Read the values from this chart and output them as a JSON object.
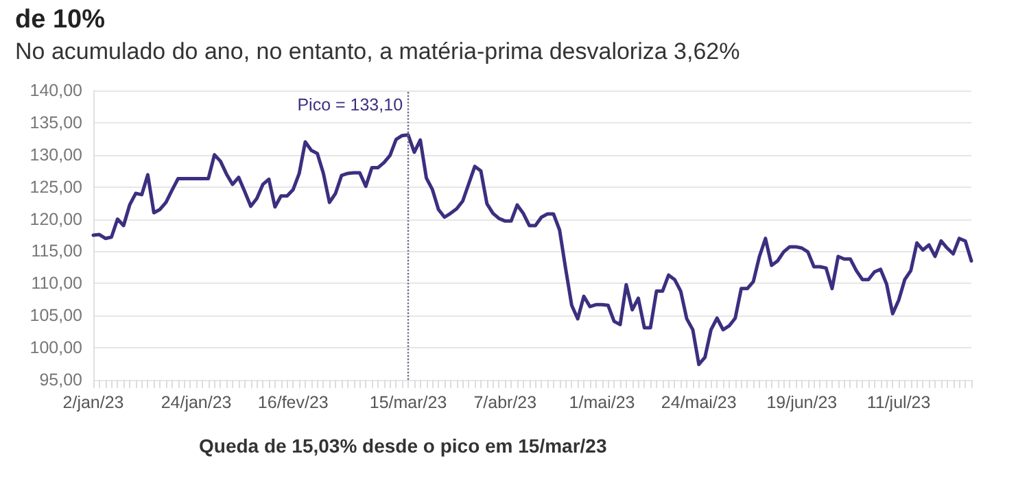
{
  "chart_data": {
    "type": "line",
    "title": "de 10%",
    "subtitle": "No acumulado do ano, no entanto, a matéria-prima desvaloriza 3,62%",
    "annotations": [
      "Queda de 15,03% desde o pico em 15/mar/23"
    ],
    "categories": [
      "2/jan/23",
      null,
      null,
      null,
      null,
      null,
      null,
      null,
      null,
      null,
      null,
      null,
      null,
      null,
      null,
      null,
      null,
      "24/jan/23",
      null,
      null,
      null,
      null,
      null,
      null,
      null,
      null,
      null,
      null,
      null,
      null,
      null,
      null,
      null,
      "16/fev/23",
      null,
      null,
      null,
      null,
      null,
      null,
      null,
      null,
      null,
      null,
      null,
      null,
      null,
      null,
      null,
      null,
      null,
      null,
      "15/mar/23",
      null,
      null,
      null,
      null,
      null,
      null,
      null,
      null,
      null,
      null,
      null,
      null,
      null,
      null,
      null,
      "7/abr/23",
      null,
      null,
      null,
      null,
      null,
      null,
      null,
      null,
      null,
      null,
      null,
      null,
      null,
      null,
      null,
      "1/mai/23",
      null,
      null,
      null,
      null,
      null,
      null,
      null,
      null,
      null,
      null,
      null,
      null,
      null,
      null,
      null,
      "24/mai/23",
      null,
      null,
      null,
      null,
      null,
      null,
      null,
      null,
      null,
      null,
      null,
      null,
      null,
      null,
      null,
      null,
      "19/jun/23",
      null,
      null,
      null,
      null,
      null,
      null,
      null,
      null,
      null,
      null,
      null,
      null,
      null,
      null,
      null,
      "11/jul/23",
      null,
      null,
      null,
      null,
      null,
      null,
      null,
      null,
      null,
      null,
      null,
      null
    ],
    "series": [
      {
        "color": "#3b2f80",
        "values": [
          117.5,
          117.6,
          117.0,
          117.2,
          120,
          119,
          122.2,
          124,
          123.8,
          126.9,
          121,
          121.5,
          122.6,
          124.5,
          126.3,
          126.3,
          126.3,
          126.3,
          126.3,
          126.3,
          130,
          129,
          127,
          125.4,
          126.5,
          124.3,
          122,
          123.2,
          125.4,
          126.2,
          121.9,
          123.6,
          123.6,
          124.6,
          127.1,
          132,
          130.7,
          130.2,
          127.1,
          122.6,
          124,
          126.8,
          127.1,
          127.2,
          127.2,
          125.1,
          128,
          128,
          128.8,
          129.9,
          132.4,
          133,
          133.1,
          130.4,
          132.3,
          126.4,
          124.6,
          121.5,
          120.3,
          120.9,
          121.6,
          122.8,
          125.5,
          128.2,
          127.5,
          122.4,
          120.9,
          120.1,
          119.7,
          119.7,
          122.2,
          120.9,
          119,
          119,
          120.3,
          120.8,
          120.8,
          118.3,
          112.3,
          106.6,
          104.5,
          108,
          106.4,
          106.7,
          106.7,
          106.6,
          104.1,
          103.6,
          109.8,
          105.9,
          107.7,
          103.1,
          103.1,
          108.8,
          108.8,
          111.3,
          110.6,
          108.8,
          104.5,
          102.8,
          97.4,
          98.5,
          102.8,
          104.6,
          102.8,
          103.4,
          104.6,
          109.2,
          109.2,
          110.3,
          114.2,
          117,
          112.8,
          113.5,
          114.9,
          115.7,
          115.7,
          115.5,
          114.9,
          112.6,
          112.6,
          112.4,
          109.2,
          114.2,
          113.8,
          113.8,
          112,
          110.6,
          110.6,
          111.8,
          112.2,
          109.9,
          105.3,
          107.4,
          110.6,
          112,
          116.3,
          115.2,
          116,
          114.2,
          116.6,
          115.5,
          114.6,
          117,
          116.6,
          113.5
        ]
      }
    ],
    "ylim": [
      95,
      140
    ],
    "yticks": [
      {
        "value": 95,
        "label": "95,00"
      },
      {
        "value": 100,
        "label": "100,00"
      },
      {
        "value": 105,
        "label": "105,00"
      },
      {
        "value": 110,
        "label": "110,00"
      },
      {
        "value": 115,
        "label": "115,00"
      },
      {
        "value": 120,
        "label": "120,00"
      },
      {
        "value": 125,
        "label": "125,00"
      },
      {
        "value": 130,
        "label": "130,00"
      },
      {
        "value": 135,
        "label": "135,00"
      },
      {
        "value": 140,
        "label": "140,00"
      }
    ],
    "grid": "y",
    "marker": "none",
    "line_style": "solid",
    "ref_lines": [
      {
        "axis": "x",
        "value": "15/mar/23",
        "label": "Pico = 133,10",
        "color": "#6b6b80",
        "line_style": "dotted"
      }
    ]
  }
}
